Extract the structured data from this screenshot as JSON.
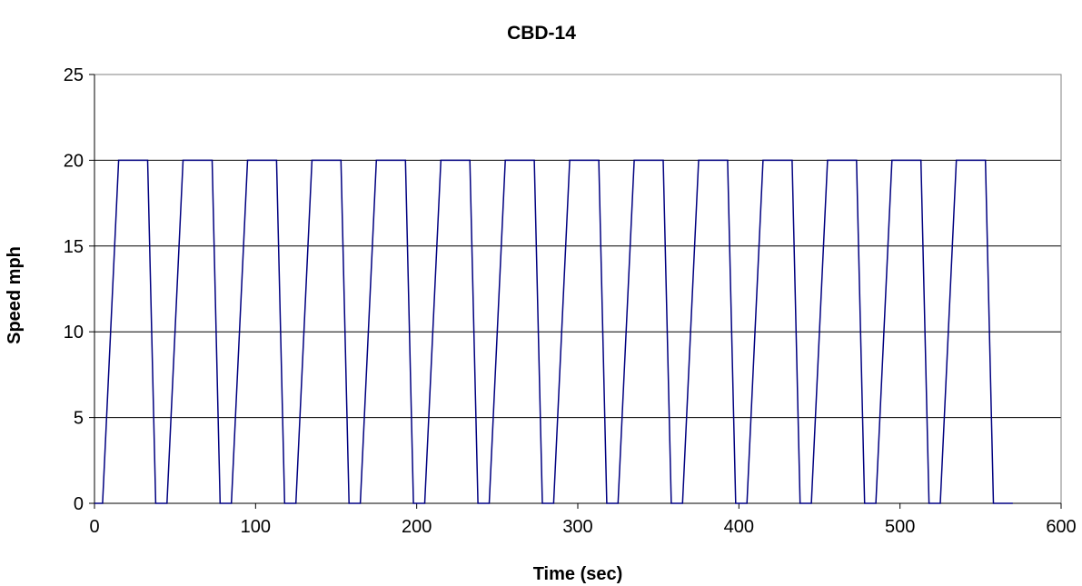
{
  "chart_data": {
    "type": "line",
    "title": "CBD-14",
    "xlabel": "Time (sec)",
    "ylabel": "Speed mph",
    "xlim": [
      0,
      600
    ],
    "ylim": [
      0,
      25
    ],
    "x_ticks": [
      0,
      100,
      200,
      300,
      400,
      500,
      600
    ],
    "y_ticks": [
      0,
      5,
      10,
      15,
      20,
      25
    ],
    "grid": "horizontal",
    "legend": "none",
    "line_color": "#000080",
    "series": [
      {
        "x": [
          0,
          5,
          15,
          33,
          38,
          45,
          55,
          73,
          78,
          85,
          95,
          113,
          118,
          125,
          135,
          153,
          158,
          165,
          175,
          193,
          198,
          205,
          215,
          233,
          238,
          245,
          255,
          273,
          278,
          285,
          295,
          313,
          318,
          325,
          335,
          353,
          358,
          365,
          375,
          393,
          398,
          405,
          415,
          433,
          438,
          445,
          455,
          473,
          478,
          485,
          495,
          513,
          518,
          525,
          535,
          553,
          558,
          570
        ],
        "y": [
          0,
          0,
          20,
          20,
          0,
          0,
          20,
          20,
          0,
          0,
          20,
          20,
          0,
          0,
          20,
          20,
          0,
          0,
          20,
          20,
          0,
          0,
          20,
          20,
          0,
          0,
          20,
          20,
          0,
          0,
          20,
          20,
          0,
          0,
          20,
          20,
          0,
          0,
          20,
          20,
          0,
          0,
          20,
          20,
          0,
          0,
          20,
          20,
          0,
          0,
          20,
          20,
          0,
          0,
          20,
          20,
          0,
          0
        ]
      }
    ]
  }
}
